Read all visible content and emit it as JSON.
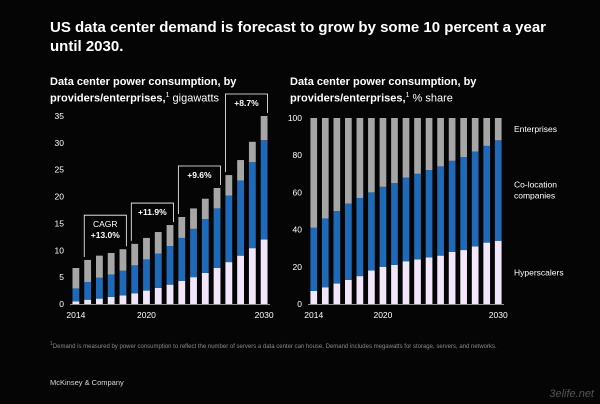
{
  "page": {
    "title": "US data center demand is forecast to grow by some 10 percent a year until 2030.",
    "footnote_marker": "1",
    "footnote": "Demand is measured by power consumption to reflect the number of servers a data center can house. Demand includes megawatts for storage, servers, and networks.",
    "brand": "McKinsey & Company",
    "watermark": "3elife.net"
  },
  "colors": {
    "background": "#050505",
    "hyperscalers": "#f1e6fa",
    "colocation": "#1e6ab8",
    "enterprises": "#a6a6a6",
    "text": "#ffffff",
    "axis": "#bdbdbd"
  },
  "chart_data": [
    {
      "type": "bar",
      "stacked": true,
      "title_bold": "Data center power consumption, by providers/enterprises,",
      "title_marker": "1",
      "title_unit": "gigawatts",
      "x": [
        "2014",
        "2015",
        "2016",
        "2017",
        "2018",
        "2019",
        "2020",
        "2021",
        "2022",
        "2023",
        "2024",
        "2025",
        "2026",
        "2027",
        "2028",
        "2029",
        "2030"
      ],
      "x_tick_labels": [
        "2014",
        "2020",
        "2030"
      ],
      "ylim": [
        0,
        35
      ],
      "yticks": [
        0,
        5,
        10,
        15,
        20,
        25,
        30,
        35
      ],
      "series": [
        {
          "name": "Hyperscalers",
          "values": [
            0.5,
            0.8,
            1.0,
            1.3,
            1.6,
            2.0,
            2.5,
            3.0,
            3.6,
            4.3,
            5.0,
            5.8,
            6.7,
            7.8,
            9.0,
            10.4,
            12.0
          ]
        },
        {
          "name": "Co-location companies",
          "values": [
            2.4,
            3.3,
            3.9,
            4.2,
            4.6,
            5.2,
            5.8,
            6.4,
            7.2,
            8.0,
            9.0,
            10.0,
            11.1,
            12.4,
            14.0,
            16.0,
            18.5
          ]
        },
        {
          "name": "Enterprises",
          "values": [
            3.8,
            4.1,
            4.1,
            4.0,
            4.0,
            4.0,
            4.0,
            4.0,
            3.9,
            3.9,
            3.8,
            3.8,
            3.8,
            3.8,
            3.8,
            3.8,
            4.5
          ]
        }
      ],
      "annotations": [
        {
          "label": "CAGR",
          "value": "+13.0%",
          "from": "2015",
          "to": "2018"
        },
        {
          "label": "",
          "value": "+11.9%",
          "from": "2019",
          "to": "2022"
        },
        {
          "label": "",
          "value": "+9.6%",
          "from": "2023",
          "to": "2026"
        },
        {
          "label": "",
          "value": "+8.7%",
          "from": "2027",
          "to": "2030"
        }
      ]
    },
    {
      "type": "bar",
      "stacked": true,
      "title_bold": "Data center power consumption, by providers/enterprises,",
      "title_marker": "1",
      "title_unit": "% share",
      "x": [
        "2014",
        "2015",
        "2016",
        "2017",
        "2018",
        "2019",
        "2020",
        "2021",
        "2022",
        "2023",
        "2024",
        "2025",
        "2026",
        "2027",
        "2028",
        "2029",
        "2030"
      ],
      "x_tick_labels": [
        "2014",
        "2020",
        "2030"
      ],
      "ylim": [
        0,
        100
      ],
      "yticks": [
        0,
        20,
        40,
        60,
        80,
        100
      ],
      "series": [
        {
          "name": "Hyperscalers",
          "label": "Hyperscalers",
          "values": [
            7,
            9,
            11,
            13,
            15,
            18,
            20,
            21,
            23,
            24,
            25,
            26,
            28,
            29,
            31,
            33,
            34
          ]
        },
        {
          "name": "Co-location companies",
          "label": "Co-location companies",
          "values": [
            34,
            37,
            39,
            41,
            42,
            42,
            43,
            44,
            45,
            46,
            47,
            48,
            49,
            50,
            51,
            52,
            54
          ]
        },
        {
          "name": "Enterprises",
          "label": "Enterprises",
          "values": [
            59,
            54,
            50,
            46,
            43,
            40,
            37,
            35,
            32,
            30,
            28,
            26,
            23,
            21,
            18,
            15,
            12
          ]
        }
      ]
    }
  ]
}
